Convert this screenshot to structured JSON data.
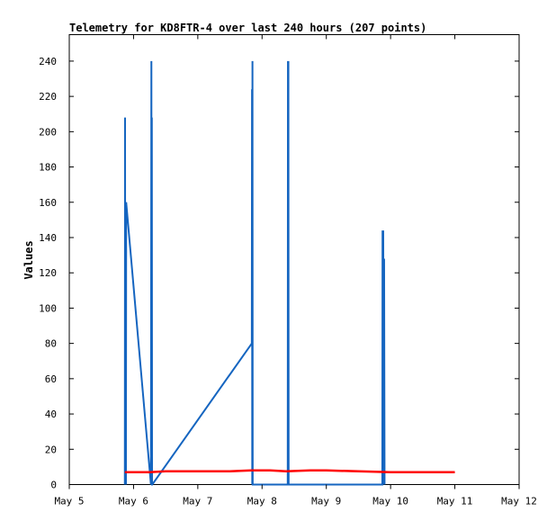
{
  "chart_data": {
    "type": "line",
    "title": "Telemetry for KD8FTR-4 over last 240 hours (207 points)",
    "xlabel": "",
    "ylabel": "Values",
    "x_ticks": [
      "May 5",
      "May 6",
      "May 7",
      "May 8",
      "May 9",
      "May 10",
      "May 11",
      "May 12"
    ],
    "y_ticks": [
      0,
      20,
      40,
      60,
      80,
      100,
      120,
      140,
      160,
      180,
      200,
      220,
      240
    ],
    "xlim": [
      "May 5 00:00",
      "May 12 00:00"
    ],
    "ylim": [
      0,
      255
    ],
    "grid": false,
    "legend": "none",
    "series": [
      {
        "color": "#1565c0",
        "points": [
          [
            "May 5 20:45",
            0
          ],
          [
            "May 5 20:50",
            208
          ],
          [
            "May 5 20:55",
            0
          ],
          [
            "May 5 21:00",
            160
          ],
          [
            "May 5 21:10",
            0
          ],
          [
            "May 5 21:15",
            160
          ],
          [
            "May 6 06:30",
            0
          ],
          [
            "May 6 06:40",
            240
          ],
          [
            "May 6 06:45",
            0
          ],
          [
            "May 6 06:50",
            208
          ],
          [
            "May 6 06:55",
            0
          ],
          [
            "May 6 07:00",
            0
          ],
          [
            "May 7 20:10",
            80
          ],
          [
            "May 7 20:15",
            224
          ],
          [
            "May 7 20:20",
            0
          ],
          [
            "May 7 20:25",
            240
          ],
          [
            "May 7 20:30",
            0
          ],
          [
            "May 8 09:35",
            0
          ],
          [
            "May 8 09:40",
            240
          ],
          [
            "May 8 09:45",
            0
          ],
          [
            "May 8 09:50",
            240
          ],
          [
            "May 8 09:55",
            0
          ],
          [
            "May 9 20:55",
            0
          ],
          [
            "May 9 21:00",
            144
          ],
          [
            "May 9 21:10",
            0
          ],
          [
            "May 9 21:15",
            144
          ],
          [
            "May 9 21:20",
            96
          ],
          [
            "May 9 21:25",
            112
          ],
          [
            "May 9 21:30",
            0
          ],
          [
            "May 9 21:35",
            128
          ],
          [
            "May 9 21:40",
            64
          ],
          [
            "May 9 21:45",
            0
          ]
        ]
      },
      {
        "color": "#ff0000",
        "points": [
          [
            "May 5 20:45",
            7.0
          ],
          [
            "May 6 06:00",
            7.0
          ],
          [
            "May 6 12:00",
            7.5
          ],
          [
            "May 7 12:00",
            7.5
          ],
          [
            "May 7 20:00",
            8.0
          ],
          [
            "May 8 03:00",
            8.0
          ],
          [
            "May 8 09:00",
            7.5
          ],
          [
            "May 8 18:00",
            8.0
          ],
          [
            "May 9 00:00",
            8.0
          ],
          [
            "May 9 12:00",
            7.5
          ],
          [
            "May 10 00:00",
            7.0
          ],
          [
            "May 11 00:00",
            7.0
          ]
        ]
      }
    ]
  }
}
